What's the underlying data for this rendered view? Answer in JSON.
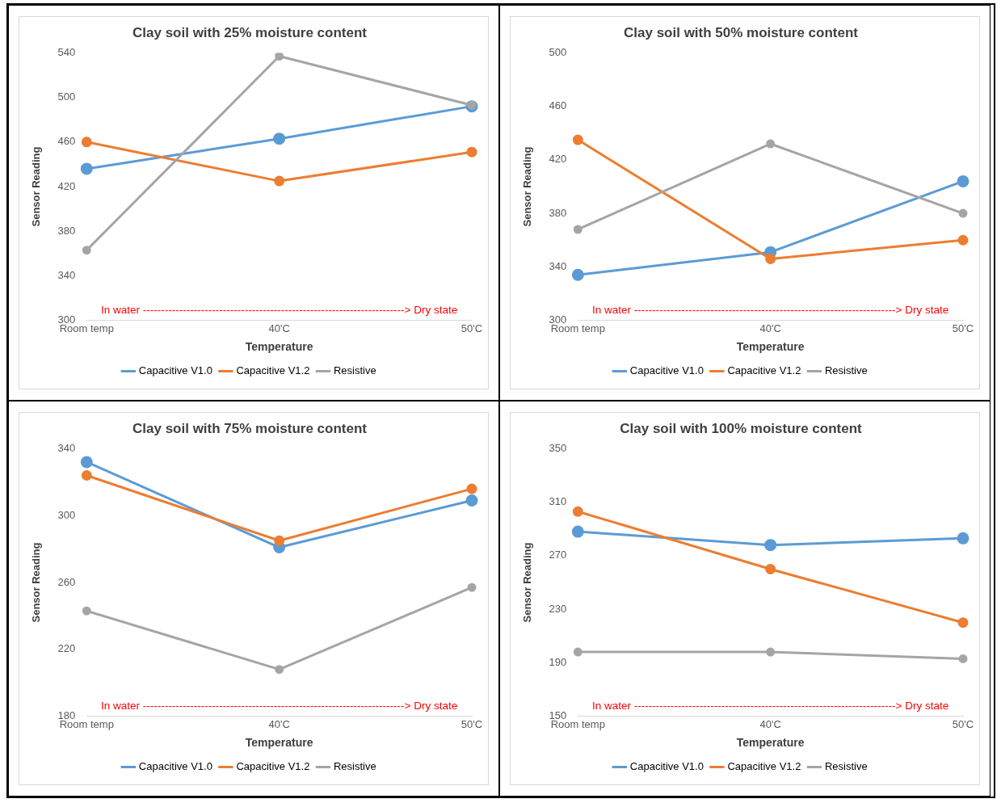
{
  "chart_data": [
    {
      "type": "line",
      "title": "Clay soil with 25% moisture content",
      "xlabel": "Temperature",
      "ylabel": "Sensor Reading",
      "categories": [
        "Room temp",
        "40'C",
        "50'C"
      ],
      "ylim": [
        300,
        540
      ],
      "yticks": [
        300,
        340,
        380,
        420,
        460,
        500,
        540
      ],
      "grid": false,
      "legend": "bottom",
      "marker": "circle",
      "annotations": [
        "In water ------------------------------------------------------------------------> Dry state"
      ],
      "series": [
        {
          "name": "Capacitive V1.0",
          "color": "#5b9bd5",
          "values": [
            436,
            463,
            492
          ]
        },
        {
          "name": "Capacitive V1.2",
          "color": "#ed7d31",
          "values": [
            460,
            425,
            451
          ]
        },
        {
          "name": "Resistive",
          "color": "#a5a5a5",
          "values": [
            363,
            537,
            493
          ]
        }
      ]
    },
    {
      "type": "line",
      "title": "Clay soil with 50% moisture content",
      "xlabel": "Temperature",
      "ylabel": "Sensor Reading",
      "categories": [
        "Room temp",
        "40'C",
        "50'C"
      ],
      "ylim": [
        300,
        500
      ],
      "yticks": [
        300,
        340,
        380,
        420,
        460,
        500
      ],
      "grid": false,
      "legend": "bottom",
      "marker": "circle",
      "annotations": [
        "In water ------------------------------------------------------------------------> Dry state"
      ],
      "series": [
        {
          "name": "Capacitive V1.0",
          "color": "#5b9bd5",
          "values": [
            334,
            351,
            404
          ]
        },
        {
          "name": "Capacitive V1.2",
          "color": "#ed7d31",
          "values": [
            435,
            346,
            360
          ]
        },
        {
          "name": "Resistive",
          "color": "#a5a5a5",
          "values": [
            368,
            432,
            380
          ]
        }
      ]
    },
    {
      "type": "line",
      "title": "Clay soil with 75% moisture content",
      "xlabel": "Temperature",
      "ylabel": "Sensor Reading",
      "categories": [
        "Room temp",
        "40'C",
        "50'C"
      ],
      "ylim": [
        180,
        340
      ],
      "yticks": [
        180,
        220,
        260,
        300,
        340
      ],
      "grid": false,
      "legend": "bottom",
      "marker": "circle",
      "annotations": [
        "In water ------------------------------------------------------------------------> Dry state"
      ],
      "series": [
        {
          "name": "Capacitive V1.0",
          "color": "#5b9bd5",
          "values": [
            332,
            281,
            309
          ]
        },
        {
          "name": "Capacitive V1.2",
          "color": "#ed7d31",
          "values": [
            324,
            285,
            316
          ]
        },
        {
          "name": "Resistive",
          "color": "#a5a5a5",
          "values": [
            243,
            208,
            257
          ]
        }
      ]
    },
    {
      "type": "line",
      "title": "Clay soil with 100% moisture content",
      "xlabel": "Temperature",
      "ylabel": "Sensor Reading",
      "categories": [
        "Room temp",
        "40'C",
        "50'C"
      ],
      "ylim": [
        150,
        350
      ],
      "yticks": [
        150,
        190,
        230,
        270,
        310,
        350
      ],
      "grid": false,
      "legend": "bottom",
      "marker": "circle",
      "annotations": [
        "In water ------------------------------------------------------------------------> Dry state"
      ],
      "series": [
        {
          "name": "Capacitive V1.0",
          "color": "#5b9bd5",
          "values": [
            288,
            278,
            283
          ]
        },
        {
          "name": "Capacitive V1.2",
          "color": "#ed7d31",
          "values": [
            303,
            260,
            220
          ]
        },
        {
          "name": "Resistive",
          "color": "#a5a5a5",
          "values": [
            198,
            198,
            193
          ]
        }
      ]
    }
  ]
}
